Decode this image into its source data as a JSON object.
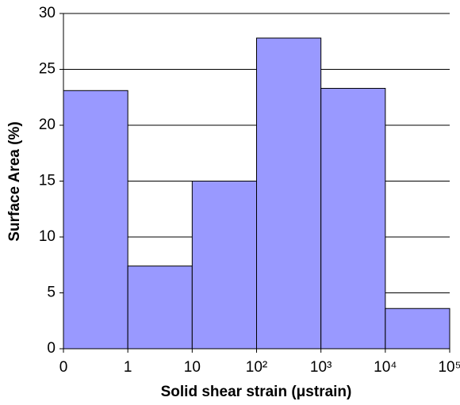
{
  "chart_data": {
    "type": "histogram",
    "xlabel": "Solid shear strain (μstrain)",
    "ylabel": "Surface Area (%)",
    "bins": [
      0,
      1,
      10,
      100,
      1000,
      10000,
      100000
    ],
    "values": [
      23.1,
      7.4,
      15,
      27.8,
      23.3,
      3.6
    ],
    "color": "#9999ff",
    "xticks": [
      0,
      1,
      10,
      {
        "value": 100,
        "label": "10²"
      },
      {
        "value": 1000,
        "label": "10³"
      },
      {
        "value": 10000,
        "label": "10⁴"
      },
      {
        "value": 100000,
        "label": "10⁵"
      }
    ],
    "ylim": [
      0,
      30
    ],
    "yticks": [
      0,
      5,
      10,
      15,
      20,
      25,
      30
    ],
    "grid": true
  }
}
